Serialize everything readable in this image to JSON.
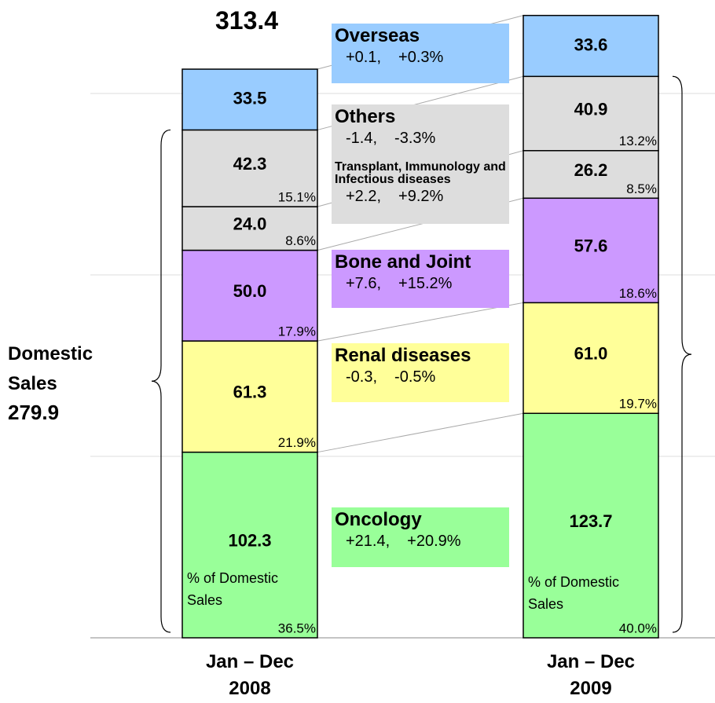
{
  "chart_data": {
    "type": "stacked-bar",
    "categories": [
      "Jan – Dec 2008",
      "Jan – Dec 2009"
    ],
    "ylim": [
      0,
      350
    ],
    "yticks": [
      0,
      100,
      200,
      300
    ],
    "grid": true,
    "series": [
      {
        "name": "Oncology",
        "color": "#99ff99",
        "values": [
          102.3,
          123.7
        ],
        "value_labels": [
          "102.3",
          "123.7"
        ],
        "shares": [
          36.5,
          40.0
        ],
        "share_labels": [
          "36.5%",
          "40.0%"
        ],
        "change_values": [
          21.4,
          20.9
        ],
        "change_labels": [
          "+21.4,",
          "+20.9%"
        ]
      },
      {
        "name": "Renal diseases",
        "color": "#ffff99",
        "values": [
          61.3,
          61.0
        ],
        "value_labels": [
          "61.3",
          "61.0"
        ],
        "shares": [
          21.9,
          19.7
        ],
        "share_labels": [
          "21.9%",
          "19.7%"
        ],
        "change_values": [
          -0.3,
          -0.5
        ],
        "change_labels": [
          "-0.3,",
          "-0.5%"
        ]
      },
      {
        "name": "Bone and Joint",
        "color": "#cc99ff",
        "values": [
          50.0,
          57.6
        ],
        "value_labels": [
          "50.0",
          "57.6"
        ],
        "shares": [
          17.9,
          18.6
        ],
        "share_labels": [
          "17.9%",
          "18.6%"
        ],
        "change_values": [
          7.6,
          15.2
        ],
        "change_labels": [
          "+7.6,",
          "+15.2%"
        ]
      },
      {
        "name": "Transplant, Immunology and Infectious diseases",
        "color": "#dddddd",
        "values": [
          24.0,
          26.2
        ],
        "value_labels": [
          "24.0",
          "26.2"
        ],
        "shares": [
          8.6,
          8.5
        ],
        "share_labels": [
          "8.6%",
          "8.5%"
        ],
        "change_values": [
          2.2,
          9.2
        ],
        "change_labels": [
          "+2.2,",
          "+9.2%"
        ]
      },
      {
        "name": "Others",
        "color": "#dddddd",
        "values": [
          42.3,
          40.9
        ],
        "value_labels": [
          "42.3",
          "40.9"
        ],
        "shares": [
          15.1,
          13.2
        ],
        "share_labels": [
          "15.1%",
          "13.2%"
        ],
        "change_values": [
          -1.4,
          -3.3
        ],
        "change_labels": [
          "-1.4,",
          "-3.3%"
        ]
      },
      {
        "name": "Overseas",
        "color": "#99ccff",
        "values": [
          33.5,
          33.6
        ],
        "value_labels": [
          "33.5",
          "33.6"
        ],
        "change_values": [
          0.1,
          0.3
        ],
        "change_labels": [
          "+0.1,",
          "+0.3%"
        ]
      }
    ],
    "annotations": {
      "total": 313.4,
      "domestic_label": "Domestic Sales",
      "domestic_total": 279.9,
      "share_note": "% of Domestic Sales"
    }
  }
}
